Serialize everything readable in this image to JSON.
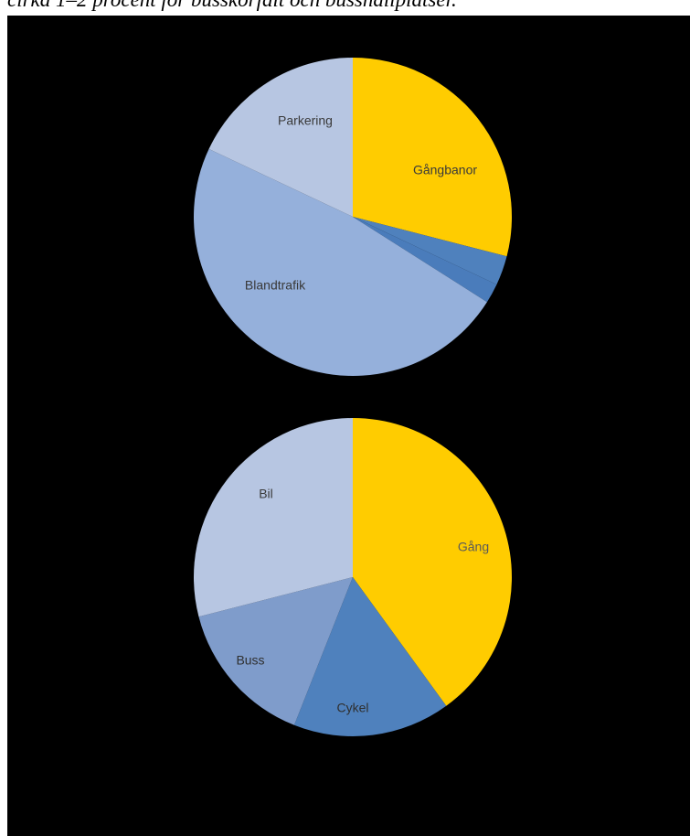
{
  "caption": "cirka 1–2 procent för busskörfält och busshållplatser.",
  "colors": {
    "background": "#000000",
    "yellow": "#FFCC00",
    "blue": "#4F81BD",
    "mid_blue": "#7F9CCB",
    "light_blue": "#95B0DB",
    "pale_blue": "#B7C6E2",
    "label_dark": "#3A3A3A"
  },
  "chart_data": [
    {
      "type": "pie",
      "title": "",
      "slices": [
        {
          "label": "Gångbanor",
          "value": 29,
          "color": "#FFCC00"
        },
        {
          "label": "",
          "value": 3,
          "color": "#4F81BD"
        },
        {
          "label": "",
          "value": 2,
          "color": "#4A7CBB"
        },
        {
          "label": "Blandtrafik",
          "value": 48,
          "color": "#95B0DB"
        },
        {
          "label": "Parkering",
          "value": 18,
          "color": "#B7C6E2"
        }
      ],
      "start_angle_deg": 0,
      "direction": "clockwise"
    },
    {
      "type": "pie",
      "title": "",
      "slices": [
        {
          "label": "Gång",
          "value": 40,
          "color": "#FFCC00"
        },
        {
          "label": "Cykel",
          "value": 16,
          "color": "#4F81BD"
        },
        {
          "label": "Buss",
          "value": 15,
          "color": "#7F9CCB"
        },
        {
          "label": "Bil",
          "value": 29,
          "color": "#B7C6E2"
        }
      ],
      "start_angle_deg": 0,
      "direction": "clockwise"
    }
  ]
}
